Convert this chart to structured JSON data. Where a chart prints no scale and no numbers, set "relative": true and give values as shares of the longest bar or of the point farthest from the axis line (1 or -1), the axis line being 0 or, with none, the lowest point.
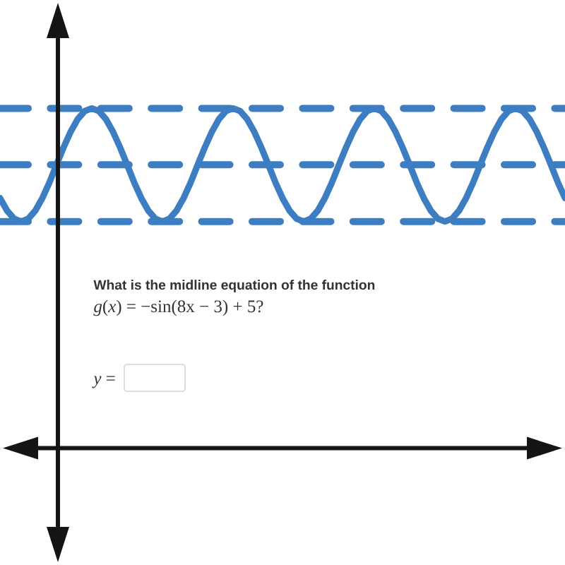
{
  "chart_data": {
    "type": "line",
    "relative": true,
    "categories": [
      null,
      null,
      null,
      null,
      null,
      null,
      null,
      null,
      null,
      null,
      null,
      null,
      null,
      null,
      null,
      null,
      null,
      null,
      null,
      null,
      null,
      null,
      null,
      null,
      null,
      null,
      null,
      null,
      null,
      null,
      null,
      null,
      null,
      null,
      null,
      null,
      null,
      null,
      null,
      null,
      null,
      null,
      null,
      null,
      null,
      null,
      null,
      null,
      null,
      null,
      null,
      null,
      null,
      null,
      null,
      null,
      null,
      null,
      null,
      null,
      null,
      null,
      null,
      null,
      null,
      null,
      null,
      null,
      null,
      null,
      null,
      null,
      null,
      null,
      null,
      null,
      null,
      null,
      null,
      null,
      null
    ],
    "values": [
      0.736,
      0.699,
      0.675,
      0.667,
      0.675,
      0.699,
      0.736,
      0.782,
      0.834,
      0.885,
      0.931,
      0.968,
      0.992,
      1,
      0.992,
      0.968,
      0.931,
      0.885,
      0.834,
      0.782,
      0.736,
      0.699,
      0.675,
      0.667,
      0.675,
      0.699,
      0.736,
      0.782,
      0.834,
      0.885,
      0.931,
      0.968,
      0.992,
      1,
      0.992,
      0.968,
      0.931,
      0.885,
      0.834,
      0.782,
      0.736,
      0.699,
      0.675,
      0.667,
      0.675,
      0.699,
      0.736,
      0.782,
      0.834,
      0.885,
      0.931,
      0.968,
      0.992,
      1,
      0.992,
      0.968,
      0.931,
      0.885,
      0.834,
      0.782,
      0.736,
      0.699,
      0.675,
      0.667,
      0.675,
      0.699,
      0.736,
      0.782,
      0.834,
      0.885,
      0.931,
      0.968,
      0.992,
      1,
      0.992,
      0.968,
      0.931,
      0.885,
      0.834,
      0.782,
      0.736
    ],
    "color": "#3d7dc1",
    "ref_lines": [
      {
        "axis": "y",
        "value": 1,
        "line_style": "dashed"
      },
      {
        "axis": "y",
        "value": 0.834,
        "line_style": "dashed"
      },
      {
        "axis": "y",
        "value": 0.667,
        "line_style": "dashed"
      }
    ],
    "annotations": [
      "What is the midline equation of the function",
      "*g*(*x*) = −sin(8x − 3) + 5?",
      "*y* ="
    ]
  }
}
